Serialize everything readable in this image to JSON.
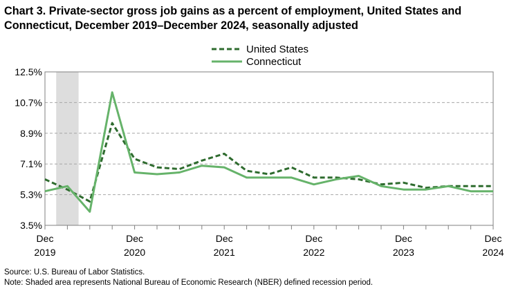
{
  "title": "Chart 3. Private-sector gross job gains as a percent of employment, United States and Connecticut, December 2019–December 2024, seasonally adjusted",
  "source": "Source: U.S. Bureau of Labor Statistics.",
  "note": "Note: Shaded area represents National Bureau of Economic Research (NBER) defined  recession period.",
  "chart_data": {
    "type": "line",
    "x": [
      "Dec 2019",
      "Mar 2020",
      "Jun 2020",
      "Sep 2020",
      "Dec 2020",
      "Mar 2021",
      "Jun 2021",
      "Sep 2021",
      "Dec 2021",
      "Mar 2022",
      "Jun 2022",
      "Sep 2022",
      "Dec 2022",
      "Mar 2023",
      "Jun 2023",
      "Sep 2023",
      "Dec 2023",
      "Mar 2024",
      "Jun 2024",
      "Sep 2024",
      "Dec 2024"
    ],
    "series": [
      {
        "name": "United States",
        "style": "dashed",
        "color": "#2e6b2e",
        "values": [
          6.2,
          5.6,
          4.9,
          9.5,
          7.4,
          6.9,
          6.8,
          7.3,
          7.7,
          6.7,
          6.5,
          6.9,
          6.3,
          6.3,
          6.2,
          5.9,
          6.0,
          5.7,
          5.8,
          5.8,
          5.8
        ]
      },
      {
        "name": "Connecticut",
        "style": "solid",
        "color": "#66b36a",
        "values": [
          5.5,
          5.8,
          4.3,
          11.3,
          6.6,
          6.5,
          6.6,
          7.0,
          6.9,
          6.3,
          6.3,
          6.3,
          5.9,
          6.2,
          6.4,
          5.8,
          5.6,
          5.6,
          5.8,
          5.5,
          5.5
        ]
      }
    ],
    "x_tick_labels": [
      {
        "month": "Dec",
        "year": "2019"
      },
      {
        "month": "Dec",
        "year": "2020"
      },
      {
        "month": "Dec",
        "year": "2021"
      },
      {
        "month": "Dec",
        "year": "2022"
      },
      {
        "month": "Dec",
        "year": "2023"
      },
      {
        "month": "Dec",
        "year": "2024"
      }
    ],
    "y_ticks": [
      3.5,
      5.3,
      7.1,
      8.9,
      10.7,
      12.5
    ],
    "y_tick_labels": [
      "3.5%",
      "5.3%",
      "7.1%",
      "8.9%",
      "10.7%",
      "12.5%"
    ],
    "ylim": [
      3.5,
      12.5
    ],
    "recession": {
      "start": "Dec 2019",
      "end": "Mar 2020",
      "color": "#dddddd"
    },
    "grid": "horizontal dashed",
    "legend": "top-center"
  }
}
